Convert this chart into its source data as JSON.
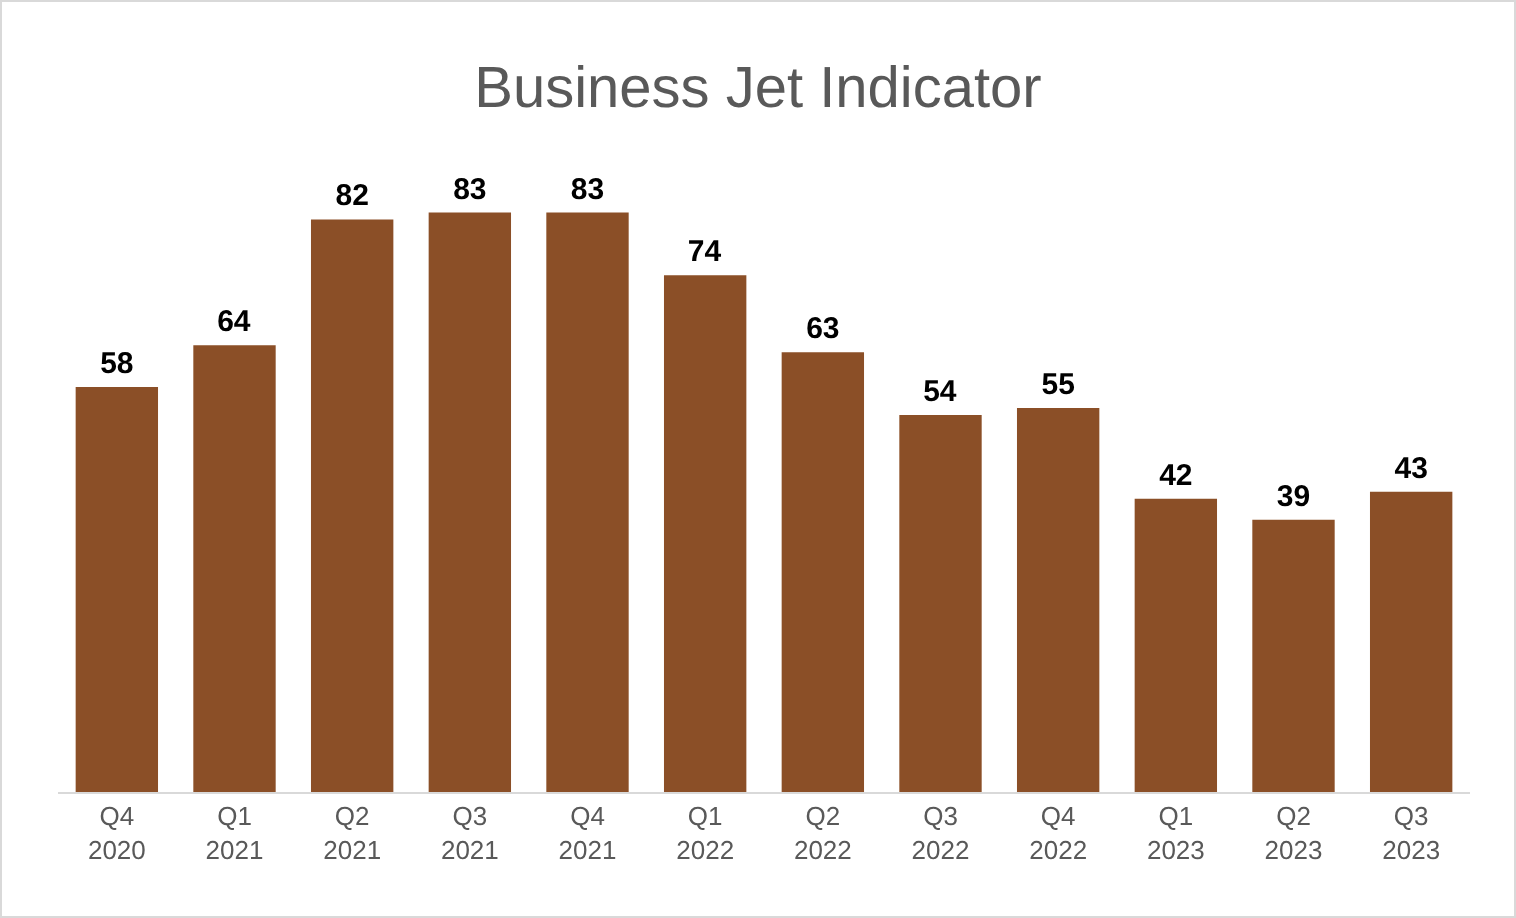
{
  "chart_data": {
    "type": "bar",
    "title": "Business Jet Indicator",
    "categories": [
      "Q4\n2020",
      "Q1\n2021",
      "Q2\n2021",
      "Q3\n2021",
      "Q4\n2021",
      "Q1\n2022",
      "Q2\n2022",
      "Q3\n2022",
      "Q4\n2022",
      "Q1\n2023",
      "Q2\n2023",
      "Q3\n2023"
    ],
    "values": [
      58,
      64,
      82,
      83,
      83,
      74,
      63,
      54,
      55,
      42,
      39,
      43
    ],
    "color": "#8b4f27",
    "data_labels": true
  }
}
